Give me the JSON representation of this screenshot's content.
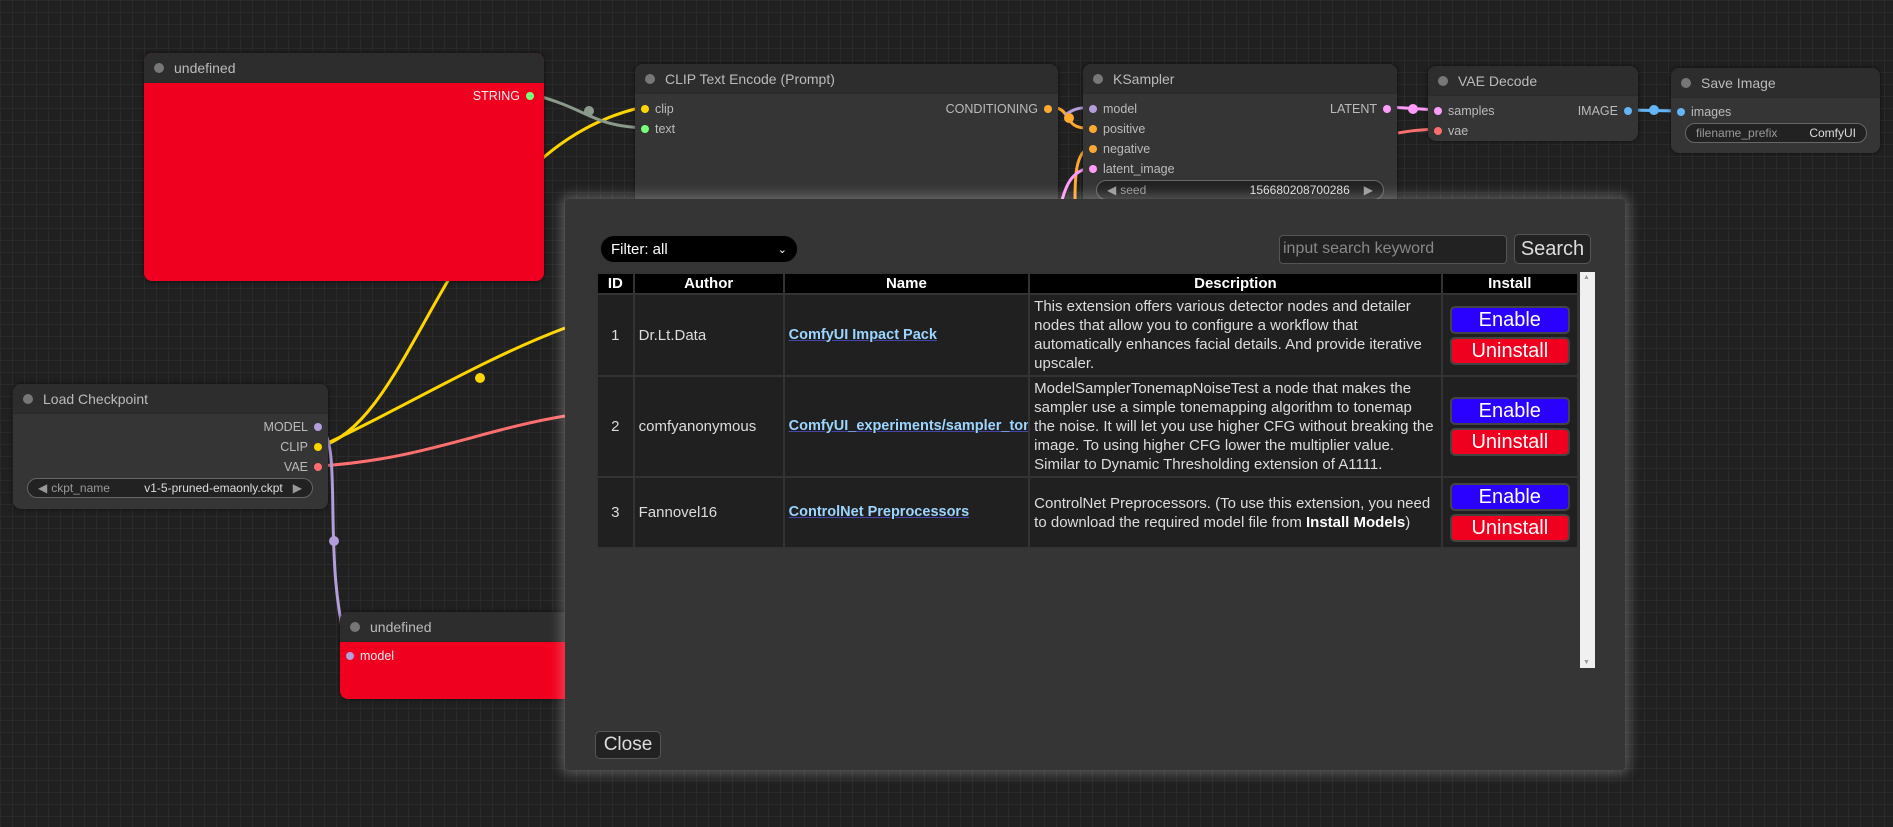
{
  "nodes": {
    "undefined_top": {
      "title": "undefined",
      "outputs": [
        "STRING"
      ]
    },
    "clip_text_encode": {
      "title": "CLIP Text Encode (Prompt)",
      "inputs": [
        "clip",
        "text"
      ],
      "outputs": [
        "CONDITIONING"
      ]
    },
    "ksampler": {
      "title": "KSampler",
      "inputs": [
        "model",
        "positive",
        "negative",
        "latent_image"
      ],
      "outputs": [
        "LATENT"
      ],
      "widget": {
        "label": "seed",
        "value": "156680208700286"
      }
    },
    "vae_decode": {
      "title": "VAE Decode",
      "inputs": [
        "samples",
        "vae"
      ],
      "outputs": [
        "IMAGE"
      ]
    },
    "save_image": {
      "title": "Save Image",
      "inputs": [
        "images"
      ],
      "widget": {
        "label": "filename_prefix",
        "value": "ComfyUI"
      }
    },
    "load_checkpoint": {
      "title": "Load Checkpoint",
      "outputs": [
        "MODEL",
        "CLIP",
        "VAE"
      ],
      "widget": {
        "label": "ckpt_name",
        "value": "v1-5-pruned-emaonly.ckpt"
      }
    },
    "undefined_bottom": {
      "title": "undefined",
      "inputs": [
        "model"
      ]
    }
  },
  "colors": {
    "node_error": "#f0001e",
    "enable": "#2a00ff",
    "uninstall": "#f0001e",
    "clip": "#ffd500",
    "model": "#b39ddb",
    "vae": "#ff6e6e",
    "latent": "#ff9cf9",
    "image": "#64b5f6",
    "conditioning": "#ffa931",
    "string": "#77ff77"
  },
  "dialog": {
    "filter": "Filter: all",
    "search_placeholder": "input search keyword",
    "search_label": "Search",
    "close_label": "Close",
    "columns": [
      "ID",
      "Author",
      "Name",
      "Description",
      "Install"
    ],
    "rows": [
      {
        "id": "1",
        "author": "Dr.Lt.Data",
        "name": "ComfyUI Impact Pack",
        "description": "This extension offers various detector nodes and detailer nodes that allow you to configure a workflow that automatically enhances facial details. And provide iterative upscaler.",
        "enable": "Enable",
        "uninstall": "Uninstall"
      },
      {
        "id": "2",
        "author": "comfyanonymous",
        "name": "ComfyUI_experiments/sampler_tonemap",
        "description": "ModelSamplerTonemapNoiseTest a node that makes the sampler use a simple tonemapping algorithm to tonemap the noise. It will let you use higher CFG without breaking the image. To using higher CFG lower the multiplier value. Similar to Dynamic Thresholding extension of A1111.",
        "enable": "Enable",
        "uninstall": "Uninstall"
      },
      {
        "id": "3",
        "author": "Fannovel16",
        "name": "ControlNet Preprocessors",
        "description_pre": "ControlNet Preprocessors. (To use this extension, you need to download the required model file from ",
        "description_bold": "Install Models",
        "description_post": ")",
        "enable": "Enable",
        "uninstall": "Uninstall"
      }
    ]
  }
}
